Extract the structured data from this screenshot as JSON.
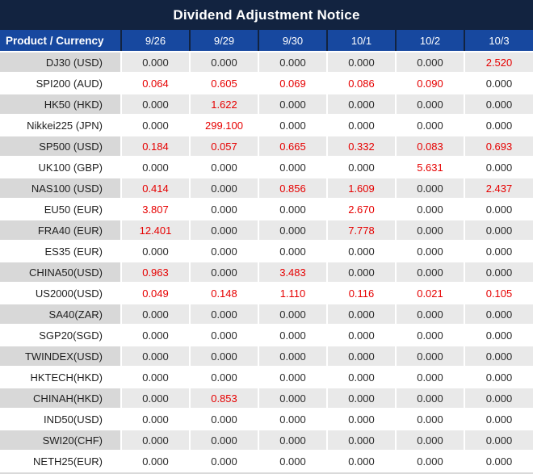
{
  "title": "Dividend Adjustment Notice",
  "colors": {
    "title_bar_bg": "#122340",
    "header_bg": "#17489f",
    "header_divider": "#122340",
    "alt_row_product_bg": "#d8d8d8",
    "alt_row_data_bg": "#e9e9e9",
    "value_positive_red": "#e60000",
    "value_zero_dark": "#2b2b2b",
    "header_text": "#ffffff"
  },
  "table": {
    "product_header": "Product / Currency",
    "date_headers": [
      "9/26",
      "9/29",
      "9/30",
      "10/1",
      "10/2",
      "10/3"
    ],
    "rows": [
      {
        "product": "DJ30 (USD)",
        "values": [
          "0.000",
          "0.000",
          "0.000",
          "0.000",
          "0.000",
          "2.520"
        ]
      },
      {
        "product": "SPI200 (AUD)",
        "values": [
          "0.064",
          "0.605",
          "0.069",
          "0.086",
          "0.090",
          "0.000"
        ]
      },
      {
        "product": "HK50 (HKD)",
        "values": [
          "0.000",
          "1.622",
          "0.000",
          "0.000",
          "0.000",
          "0.000"
        ]
      },
      {
        "product": "Nikkei225 (JPN)",
        "values": [
          "0.000",
          "299.100",
          "0.000",
          "0.000",
          "0.000",
          "0.000"
        ]
      },
      {
        "product": "SP500 (USD)",
        "values": [
          "0.184",
          "0.057",
          "0.665",
          "0.332",
          "0.083",
          "0.693"
        ]
      },
      {
        "product": "UK100 (GBP)",
        "values": [
          "0.000",
          "0.000",
          "0.000",
          "0.000",
          "5.631",
          "0.000"
        ]
      },
      {
        "product": "NAS100 (USD)",
        "values": [
          "0.414",
          "0.000",
          "0.856",
          "1.609",
          "0.000",
          "2.437"
        ]
      },
      {
        "product": "EU50 (EUR)",
        "values": [
          "3.807",
          "0.000",
          "0.000",
          "2.670",
          "0.000",
          "0.000"
        ]
      },
      {
        "product": "FRA40 (EUR)",
        "values": [
          "12.401",
          "0.000",
          "0.000",
          "7.778",
          "0.000",
          "0.000"
        ]
      },
      {
        "product": "ES35 (EUR)",
        "values": [
          "0.000",
          "0.000",
          "0.000",
          "0.000",
          "0.000",
          "0.000"
        ]
      },
      {
        "product": "CHINA50(USD)",
        "values": [
          "0.963",
          "0.000",
          "3.483",
          "0.000",
          "0.000",
          "0.000"
        ]
      },
      {
        "product": "US2000(USD)",
        "values": [
          "0.049",
          "0.148",
          "1.110",
          "0.116",
          "0.021",
          "0.105"
        ]
      },
      {
        "product": "SA40(ZAR)",
        "values": [
          "0.000",
          "0.000",
          "0.000",
          "0.000",
          "0.000",
          "0.000"
        ]
      },
      {
        "product": "SGP20(SGD)",
        "values": [
          "0.000",
          "0.000",
          "0.000",
          "0.000",
          "0.000",
          "0.000"
        ]
      },
      {
        "product": "TWINDEX(USD)",
        "values": [
          "0.000",
          "0.000",
          "0.000",
          "0.000",
          "0.000",
          "0.000"
        ]
      },
      {
        "product": "HKTECH(HKD)",
        "values": [
          "0.000",
          "0.000",
          "0.000",
          "0.000",
          "0.000",
          "0.000"
        ]
      },
      {
        "product": "CHINAH(HKD)",
        "values": [
          "0.000",
          "0.853",
          "0.000",
          "0.000",
          "0.000",
          "0.000"
        ]
      },
      {
        "product": "IND50(USD)",
        "values": [
          "0.000",
          "0.000",
          "0.000",
          "0.000",
          "0.000",
          "0.000"
        ]
      },
      {
        "product": "SWI20(CHF)",
        "values": [
          "0.000",
          "0.000",
          "0.000",
          "0.000",
          "0.000",
          "0.000"
        ]
      },
      {
        "product": "NETH25(EUR)",
        "values": [
          "0.000",
          "0.000",
          "0.000",
          "0.000",
          "0.000",
          "0.000"
        ]
      }
    ]
  }
}
